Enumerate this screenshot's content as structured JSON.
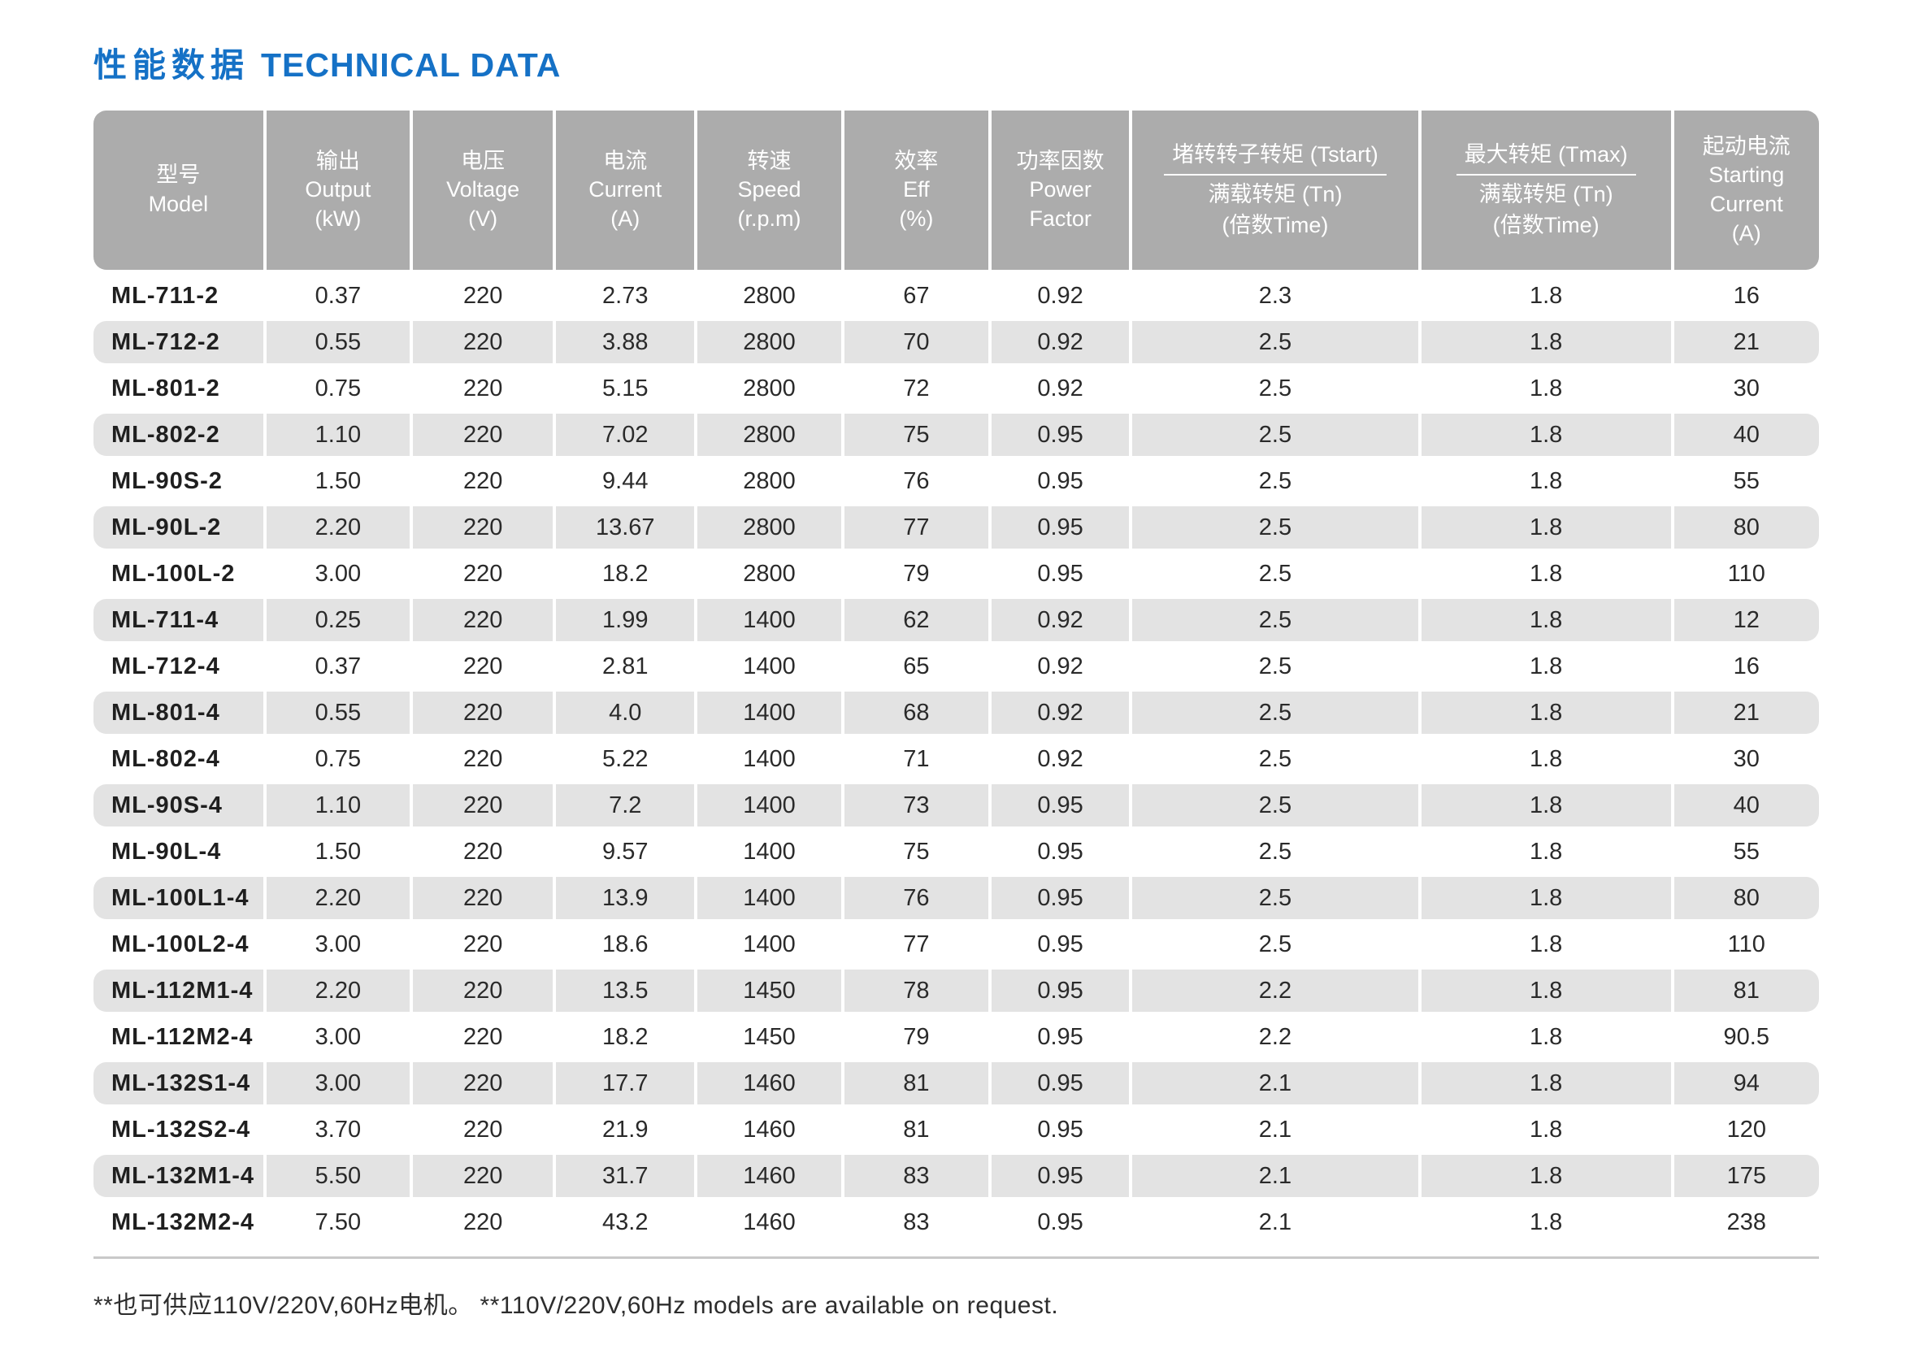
{
  "page": {
    "title_zh": "性能数据",
    "title_en": "TECHNICAL DATA",
    "footnote": "**也可供应110V/220V,60Hz电机。 **110V/220V,60Hz models are available on request."
  },
  "colors": {
    "title_blue": "#1571C6",
    "header_bg": "#ACACAC",
    "row_alt_bg": "#E3E3E3",
    "rule_gray": "#C9C9C9"
  },
  "table": {
    "columns": [
      {
        "key": "model",
        "zh": "型号",
        "en": "Model",
        "unit": ""
      },
      {
        "key": "output",
        "zh": "输出",
        "en": "Output",
        "unit": "(kW)"
      },
      {
        "key": "voltage",
        "zh": "电压",
        "en": "Voltage",
        "unit": "(V)"
      },
      {
        "key": "current",
        "zh": "电流",
        "en": "Current",
        "unit": "(A)"
      },
      {
        "key": "speed",
        "zh": "转速",
        "en": "Speed",
        "unit": "(r.p.m)"
      },
      {
        "key": "eff",
        "zh": "效率",
        "en": "Eff",
        "unit": "(%)"
      },
      {
        "key": "power-factor",
        "zh": "功率因数",
        "en": "Power Factor",
        "unit": ""
      },
      {
        "key": "tstart-ratio",
        "fraction": {
          "numerator": "堵转转子转矩 (Tstart)",
          "denominator": "满载转矩 (Tn)"
        },
        "unit": "(倍数Time)"
      },
      {
        "key": "tmax-ratio",
        "fraction": {
          "numerator": "最大转矩 (Tmax)",
          "denominator": "满载转矩 (Tn)"
        },
        "unit": "(倍数Time)"
      },
      {
        "key": "starting-current",
        "zh": "起动电流",
        "en": "Starting Current",
        "unit": "(A)"
      }
    ],
    "rows": [
      [
        "ML-711-2",
        "0.37",
        "220",
        "2.73",
        "2800",
        "67",
        "0.92",
        "2.3",
        "1.8",
        "16"
      ],
      [
        "ML-712-2",
        "0.55",
        "220",
        "3.88",
        "2800",
        "70",
        "0.92",
        "2.5",
        "1.8",
        "21"
      ],
      [
        "ML-801-2",
        "0.75",
        "220",
        "5.15",
        "2800",
        "72",
        "0.92",
        "2.5",
        "1.8",
        "30"
      ],
      [
        "ML-802-2",
        "1.10",
        "220",
        "7.02",
        "2800",
        "75",
        "0.95",
        "2.5",
        "1.8",
        "40"
      ],
      [
        "ML-90S-2",
        "1.50",
        "220",
        "9.44",
        "2800",
        "76",
        "0.95",
        "2.5",
        "1.8",
        "55"
      ],
      [
        "ML-90L-2",
        "2.20",
        "220",
        "13.67",
        "2800",
        "77",
        "0.95",
        "2.5",
        "1.8",
        "80"
      ],
      [
        "ML-100L-2",
        "3.00",
        "220",
        "18.2",
        "2800",
        "79",
        "0.95",
        "2.5",
        "1.8",
        "110"
      ],
      [
        "ML-711-4",
        "0.25",
        "220",
        "1.99",
        "1400",
        "62",
        "0.92",
        "2.5",
        "1.8",
        "12"
      ],
      [
        "ML-712-4",
        "0.37",
        "220",
        "2.81",
        "1400",
        "65",
        "0.92",
        "2.5",
        "1.8",
        "16"
      ],
      [
        "ML-801-4",
        "0.55",
        "220",
        "4.0",
        "1400",
        "68",
        "0.92",
        "2.5",
        "1.8",
        "21"
      ],
      [
        "ML-802-4",
        "0.75",
        "220",
        "5.22",
        "1400",
        "71",
        "0.92",
        "2.5",
        "1.8",
        "30"
      ],
      [
        "ML-90S-4",
        "1.10",
        "220",
        "7.2",
        "1400",
        "73",
        "0.95",
        "2.5",
        "1.8",
        "40"
      ],
      [
        "ML-90L-4",
        "1.50",
        "220",
        "9.57",
        "1400",
        "75",
        "0.95",
        "2.5",
        "1.8",
        "55"
      ],
      [
        "ML-100L1-4",
        "2.20",
        "220",
        "13.9",
        "1400",
        "76",
        "0.95",
        "2.5",
        "1.8",
        "80"
      ],
      [
        "ML-100L2-4",
        "3.00",
        "220",
        "18.6",
        "1400",
        "77",
        "0.95",
        "2.5",
        "1.8",
        "110"
      ],
      [
        "ML-112M1-4",
        "2.20",
        "220",
        "13.5",
        "1450",
        "78",
        "0.95",
        "2.2",
        "1.8",
        "81"
      ],
      [
        "ML-112M2-4",
        "3.00",
        "220",
        "18.2",
        "1450",
        "79",
        "0.95",
        "2.2",
        "1.8",
        "90.5"
      ],
      [
        "ML-132S1-4",
        "3.00",
        "220",
        "17.7",
        "1460",
        "81",
        "0.95",
        "2.1",
        "1.8",
        "94"
      ],
      [
        "ML-132S2-4",
        "3.70",
        "220",
        "21.9",
        "1460",
        "81",
        "0.95",
        "2.1",
        "1.8",
        "120"
      ],
      [
        "ML-132M1-4",
        "5.50",
        "220",
        "31.7",
        "1460",
        "83",
        "0.95",
        "2.1",
        "1.8",
        "175"
      ],
      [
        "ML-132M2-4",
        "7.50",
        "220",
        "43.2",
        "1460",
        "83",
        "0.95",
        "2.1",
        "1.8",
        "238"
      ]
    ]
  }
}
